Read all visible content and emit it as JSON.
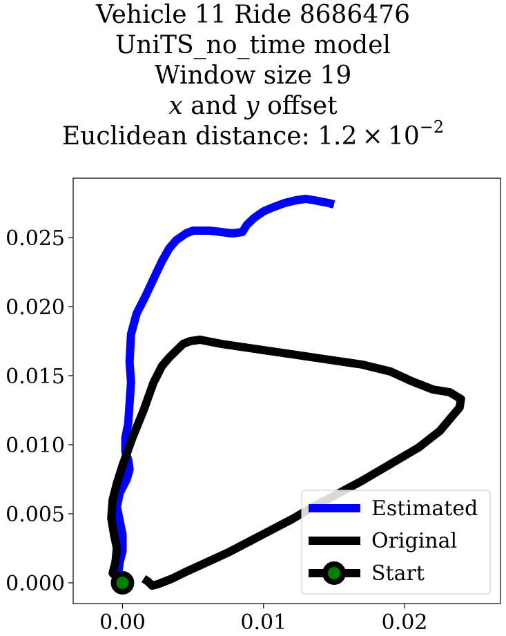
{
  "chart_data": {
    "type": "line",
    "title_lines": {
      "line1": "Vehicle 11 Ride 8686476",
      "line2": "UniTS_no_time model",
      "line3": "Window size 19",
      "line4_x": "x",
      "line4_and": " and ",
      "line4_y": "y",
      "line4_rest": " offset",
      "line5_prefix": "Euclidean distance: 1.2 × 10",
      "line5_exp": "−2"
    },
    "xlim": [
      -0.0035,
      0.0268
    ],
    "ylim": [
      -0.0015,
      0.0293
    ],
    "x_ticks": [
      {
        "value": 0.0,
        "label": "0.00"
      },
      {
        "value": 0.01,
        "label": "0.01"
      },
      {
        "value": 0.02,
        "label": "0.02"
      }
    ],
    "y_ticks": [
      {
        "value": 0.0,
        "label": "0.000"
      },
      {
        "value": 0.005,
        "label": "0.005"
      },
      {
        "value": 0.01,
        "label": "0.010"
      },
      {
        "value": 0.015,
        "label": "0.015"
      },
      {
        "value": 0.02,
        "label": "0.020"
      },
      {
        "value": 0.025,
        "label": "0.025"
      }
    ],
    "legend_position": "lower-right",
    "series": [
      {
        "name": "Estimated",
        "color": "#0000ff",
        "x": [
          0.0,
          -0.0003,
          -0.0002,
          0.0,
          0.0,
          -0.0002,
          -0.0004,
          -0.0002,
          0.0003,
          0.0005,
          0.0004,
          0.0002,
          0.0002,
          0.0004,
          0.0005,
          0.0006,
          0.0005,
          0.0006,
          0.001,
          0.0016,
          0.0022,
          0.0028,
          0.0033,
          0.0038,
          0.0045,
          0.005,
          0.0055,
          0.0062,
          0.007,
          0.0078,
          0.0085,
          0.0088,
          0.0093,
          0.01,
          0.0107,
          0.0115,
          0.0123,
          0.013,
          0.0136,
          0.0141,
          0.0146,
          0.015
        ],
        "y": [
          0.0,
          0.0007,
          0.0015,
          0.0023,
          0.0035,
          0.0045,
          0.0055,
          0.0065,
          0.0075,
          0.0082,
          0.0089,
          0.0095,
          0.0105,
          0.0115,
          0.013,
          0.0145,
          0.016,
          0.018,
          0.0195,
          0.0207,
          0.022,
          0.0233,
          0.0242,
          0.0248,
          0.0253,
          0.0255,
          0.0255,
          0.0255,
          0.0254,
          0.0253,
          0.0254,
          0.0259,
          0.0264,
          0.0269,
          0.0272,
          0.0275,
          0.0277,
          0.0278,
          0.0277,
          0.0276,
          0.0275,
          0.0274
        ]
      },
      {
        "name": "Original",
        "color": "#000000",
        "x": [
          0.0,
          -0.0007,
          -0.0005,
          -0.0004,
          -0.0006,
          -0.0008,
          -0.0007,
          -0.0004,
          0.0,
          0.0007,
          0.0015,
          0.0022,
          0.0028,
          0.0033,
          0.0038,
          0.0043,
          0.0048,
          0.0055,
          0.007,
          0.009,
          0.011,
          0.013,
          0.015,
          0.017,
          0.019,
          0.0205,
          0.022,
          0.0232,
          0.024,
          0.0239,
          0.0225,
          0.021,
          0.019,
          0.017,
          0.015,
          0.0135,
          0.012,
          0.0105,
          0.009,
          0.0075,
          0.006,
          0.0045,
          0.0035,
          0.0025,
          0.0021,
          0.0018,
          0.0015
        ],
        "y": [
          0.0,
          0.0007,
          0.0015,
          0.0025,
          0.0035,
          0.0047,
          0.006,
          0.0072,
          0.0085,
          0.0105,
          0.0125,
          0.0145,
          0.0157,
          0.0163,
          0.0168,
          0.0173,
          0.0175,
          0.0176,
          0.0173,
          0.017,
          0.0167,
          0.0164,
          0.0161,
          0.0158,
          0.0153,
          0.0146,
          0.014,
          0.0138,
          0.0133,
          0.0127,
          0.011,
          0.0098,
          0.0086,
          0.0074,
          0.0063,
          0.0055,
          0.0046,
          0.0038,
          0.003,
          0.0022,
          0.0015,
          0.0008,
          0.0003,
          -0.0001,
          -0.0002,
          0.0001,
          0.0003
        ]
      }
    ],
    "start_point": {
      "name": "Start",
      "x": 0.0,
      "y": 0.0,
      "marker_color": "#008000",
      "edge_color": "#000000"
    },
    "legend": [
      {
        "label": "Estimated",
        "color": "#0000ff",
        "marker": false
      },
      {
        "label": "Original",
        "color": "#000000",
        "marker": false
      },
      {
        "label": "Start",
        "color": "#000000",
        "marker": true,
        "marker_color": "#008000"
      }
    ]
  }
}
